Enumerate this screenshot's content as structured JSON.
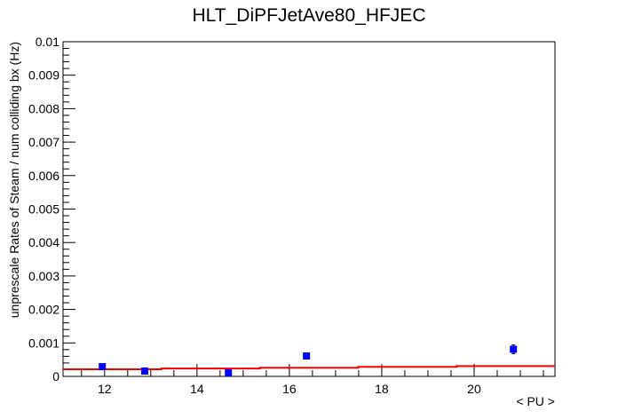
{
  "chart_data": {
    "type": "scatter",
    "title": "HLT_DiPFJetAve80_HFJEC",
    "xlabel": "< PU >",
    "ylabel": "unprescale Rates of Steam / num colliding bx (Hz)",
    "xlim": [
      11.1,
      21.75
    ],
    "ylim": [
      0,
      0.01
    ],
    "x_ticks": [
      12,
      14,
      16,
      18,
      20
    ],
    "x_tick_labels": [
      "12",
      "14",
      "16",
      "18",
      "20"
    ],
    "y_ticks": [
      0,
      0.001,
      0.002,
      0.003,
      0.004,
      0.005,
      0.006,
      0.007,
      0.008,
      0.009,
      0.01
    ],
    "y_tick_labels": [
      "0",
      "0.001",
      "0.002",
      "0.003",
      "0.004",
      "0.005",
      "0.006",
      "0.007",
      "0.008",
      "0.009",
      "0.01"
    ],
    "grid": false,
    "series": [
      {
        "color": "#0000ff",
        "x": [
          11.95,
          12.87,
          14.68,
          16.37,
          20.85
        ],
        "y": [
          0.00029,
          0.00016,
          0.00011,
          0.00061,
          0.00081
        ],
        "yerr": [
          6e-05,
          4e-05,
          3e-05,
          7e-05,
          0.00013
        ]
      }
    ],
    "fit": {
      "color": "#ff0000",
      "x": [
        11.1,
        21.75
      ],
      "y": [
        0.0002,
        0.00032
      ]
    }
  }
}
